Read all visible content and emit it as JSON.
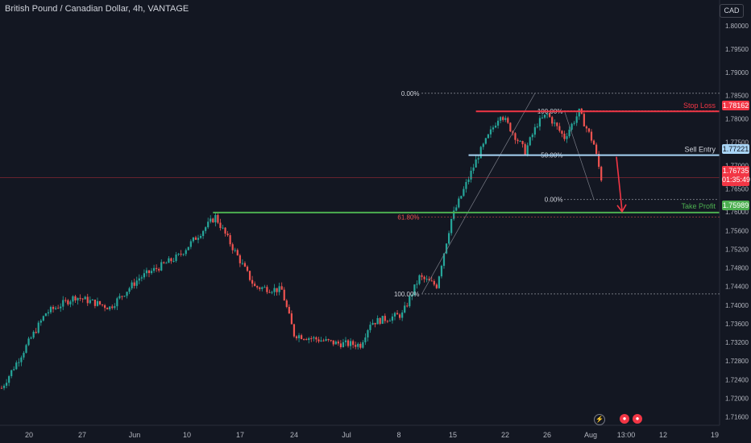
{
  "header": {
    "title": "British Pound / Canadian Dollar, 4h, VANTAGE",
    "currency": "CAD"
  },
  "colors": {
    "background": "#131722",
    "up": "#26a69a",
    "down": "#ef5350",
    "stop_loss": "#f23645",
    "entry": "#a8d4f5",
    "take_profit": "#4caf50",
    "axis_text": "#b2b5be"
  },
  "chart_data": {
    "type": "candlestick",
    "title": "British Pound / Canadian Dollar, 4h, VANTAGE",
    "ylim": [
      1.712,
      1.8025
    ],
    "y_ticks": [
      "1.80000",
      "1.79500",
      "1.79000",
      "1.78500",
      "1.78000",
      "1.77500",
      "1.77000",
      "1.76500",
      "1.76000",
      "1.75600",
      "1.75200",
      "1.74800",
      "1.74400",
      "1.74000",
      "1.73600",
      "1.73200",
      "1.72800",
      "1.72400",
      "1.72000",
      "1.71600"
    ],
    "x_ticks": [
      "20",
      "27",
      "Jun",
      "10",
      "17",
      "24",
      "Jul",
      "8",
      "15",
      "22",
      "26",
      "Aug",
      "13:00",
      "12",
      "19"
    ],
    "grid": false,
    "keypoints": [
      {
        "t": 0,
        "price": 1.7222
      },
      {
        "t": 18,
        "price": 1.7383
      },
      {
        "t": 30,
        "price": 1.7418
      },
      {
        "t": 44,
        "price": 1.7395
      },
      {
        "t": 56,
        "price": 1.7458
      },
      {
        "t": 72,
        "price": 1.7505
      },
      {
        "t": 87,
        "price": 1.759
      },
      {
        "t": 103,
        "price": 1.7439
      },
      {
        "t": 114,
        "price": 1.7432
      },
      {
        "t": 119,
        "price": 1.7337
      },
      {
        "t": 136,
        "price": 1.7318
      },
      {
        "t": 146,
        "price": 1.7315
      },
      {
        "t": 150,
        "price": 1.7362
      },
      {
        "t": 163,
        "price": 1.738
      },
      {
        "t": 170,
        "price": 1.746
      },
      {
        "t": 177,
        "price": 1.7442
      },
      {
        "t": 183,
        "price": 1.7585
      },
      {
        "t": 194,
        "price": 1.7722
      },
      {
        "t": 203,
        "price": 1.7812
      },
      {
        "t": 213,
        "price": 1.773
      },
      {
        "t": 218,
        "price": 1.779
      },
      {
        "t": 222,
        "price": 1.781
      },
      {
        "t": 229,
        "price": 1.776
      },
      {
        "t": 235,
        "price": 1.7815
      },
      {
        "t": 241,
        "price": 1.7745
      },
      {
        "t": 244,
        "price": 1.7672
      }
    ],
    "levels": {
      "stop_loss": {
        "label": "Stop Loss",
        "price": 1.78162,
        "tag": "1.78162"
      },
      "sell_entry": {
        "label": "Sell Entry",
        "price": 1.77221,
        "tag": "1.77221"
      },
      "take_profit": {
        "label": "Take Profit",
        "price": 1.75989,
        "tag": "1.75989"
      },
      "current": {
        "price": 1.76735,
        "tag": "1.76735",
        "countdown": "01:35:49"
      }
    },
    "fib_big": [
      {
        "label": "0.00%",
        "price": 1.7855
      },
      {
        "label": "61.80%",
        "price": 1.7589
      },
      {
        "label": "100.00%",
        "price": 1.7424
      }
    ],
    "fib_small": [
      {
        "label": "100.00%",
        "price": 1.7817
      },
      {
        "label": "50.00%",
        "price": 1.7722
      },
      {
        "label": "0.00%",
        "price": 1.7627
      }
    ]
  },
  "events": [
    "lightning-icon",
    "gbp-event-icon",
    "gbp-event-icon-2"
  ]
}
